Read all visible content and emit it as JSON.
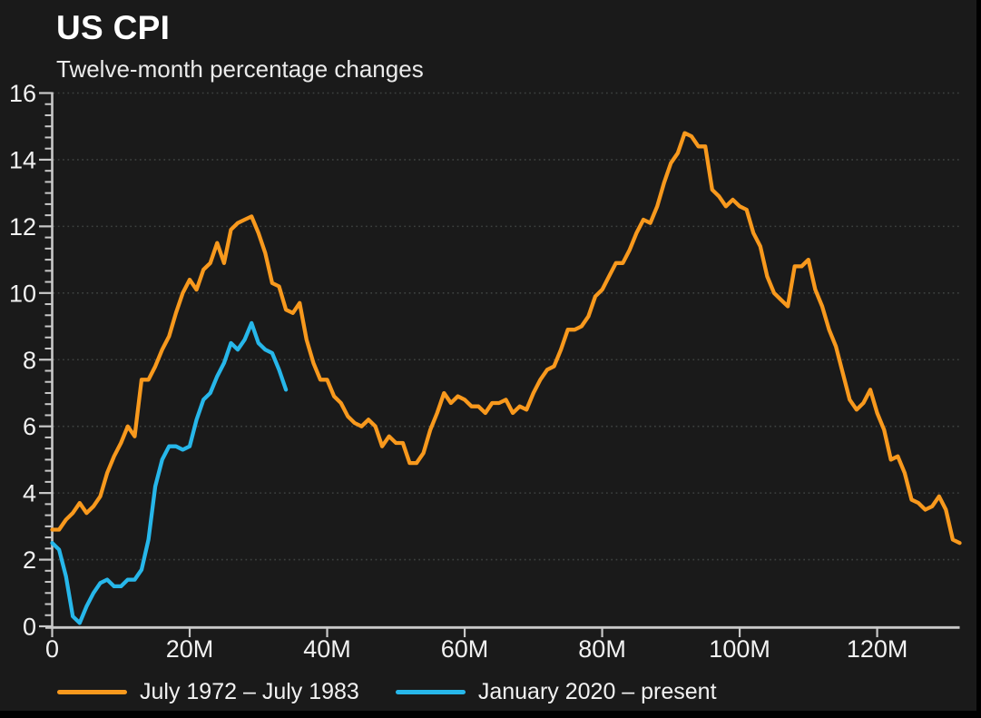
{
  "colors": {
    "background": "#1a1a1a",
    "edge": "#000000",
    "axis": "#c9c9c9",
    "gridline": "#3e4240",
    "tick_text": "#f2f2f2",
    "title_text": "#ffffff",
    "subtitle_text": "#ebebeb",
    "series1": "#f8991d",
    "series2": "#27b7ea"
  },
  "chart_data": {
    "type": "line",
    "title": "US CPI",
    "subtitle": "Twelve-month percentage changes",
    "xlabel": "",
    "ylabel": "",
    "x_unit": "months since start of period",
    "xlim": [
      0,
      132
    ],
    "ylim": [
      0,
      16
    ],
    "grid": "horizontal dotted gridlines at every 2 units",
    "legend_position": "bottom",
    "x_axis": {
      "tick_values": [
        0,
        20,
        40,
        60,
        80,
        100,
        120
      ],
      "tick_labels": [
        "0",
        "20M",
        "40M",
        "60M",
        "80M",
        "100M",
        "120M"
      ]
    },
    "y_axis": {
      "tick_values": [
        0,
        2,
        4,
        6,
        8,
        10,
        12,
        14,
        16
      ],
      "tick_labels": [
        "0",
        "2",
        "4",
        "6",
        "8",
        "10",
        "12",
        "14",
        "16"
      ],
      "minor_divisions_per_major": 6
    },
    "series": [
      {
        "name": "July 1972 – July 1983",
        "color": "#f8991d",
        "x_start": 0,
        "x_step_months": 1,
        "values": [
          2.9,
          2.9,
          3.2,
          3.4,
          3.7,
          3.4,
          3.6,
          3.9,
          4.6,
          5.1,
          5.5,
          6.0,
          5.7,
          7.4,
          7.4,
          7.8,
          8.3,
          8.7,
          9.4,
          10.0,
          10.4,
          10.1,
          10.7,
          10.9,
          11.5,
          10.9,
          11.9,
          12.1,
          12.2,
          12.3,
          11.8,
          11.2,
          10.3,
          10.2,
          9.5,
          9.4,
          9.7,
          8.6,
          7.9,
          7.4,
          7.4,
          6.9,
          6.7,
          6.3,
          6.1,
          6.0,
          6.2,
          6.0,
          5.4,
          5.7,
          5.5,
          5.5,
          4.9,
          4.9,
          5.2,
          5.9,
          6.4,
          7.0,
          6.7,
          6.9,
          6.8,
          6.6,
          6.6,
          6.4,
          6.7,
          6.7,
          6.8,
          6.4,
          6.6,
          6.5,
          7.0,
          7.4,
          7.7,
          7.8,
          8.3,
          8.9,
          8.9,
          9.0,
          9.3,
          9.9,
          10.1,
          10.5,
          10.9,
          10.9,
          11.3,
          11.8,
          12.2,
          12.1,
          12.6,
          13.3,
          13.9,
          14.2,
          14.8,
          14.7,
          14.4,
          14.4,
          13.1,
          12.9,
          12.6,
          12.8,
          12.6,
          12.5,
          11.8,
          11.4,
          10.5,
          10.0,
          9.8,
          9.6,
          10.8,
          10.8,
          11.0,
          10.1,
          9.6,
          8.9,
          8.4,
          7.6,
          6.8,
          6.5,
          6.7,
          7.1,
          6.4,
          5.9,
          5.0,
          5.1,
          4.6,
          3.8,
          3.7,
          3.5,
          3.6,
          3.9,
          3.5,
          2.6,
          2.5
        ]
      },
      {
        "name": "January 2020 – present",
        "color": "#27b7ea",
        "x_start": 0,
        "x_step_months": 1,
        "values": [
          2.5,
          2.3,
          1.5,
          0.3,
          0.1,
          0.6,
          1.0,
          1.3,
          1.4,
          1.2,
          1.2,
          1.4,
          1.4,
          1.7,
          2.6,
          4.2,
          5.0,
          5.4,
          5.4,
          5.3,
          5.4,
          6.2,
          6.8,
          7.0,
          7.5,
          7.9,
          8.5,
          8.3,
          8.6,
          9.1,
          8.5,
          8.3,
          8.2,
          7.7,
          7.1
        ]
      }
    ]
  }
}
